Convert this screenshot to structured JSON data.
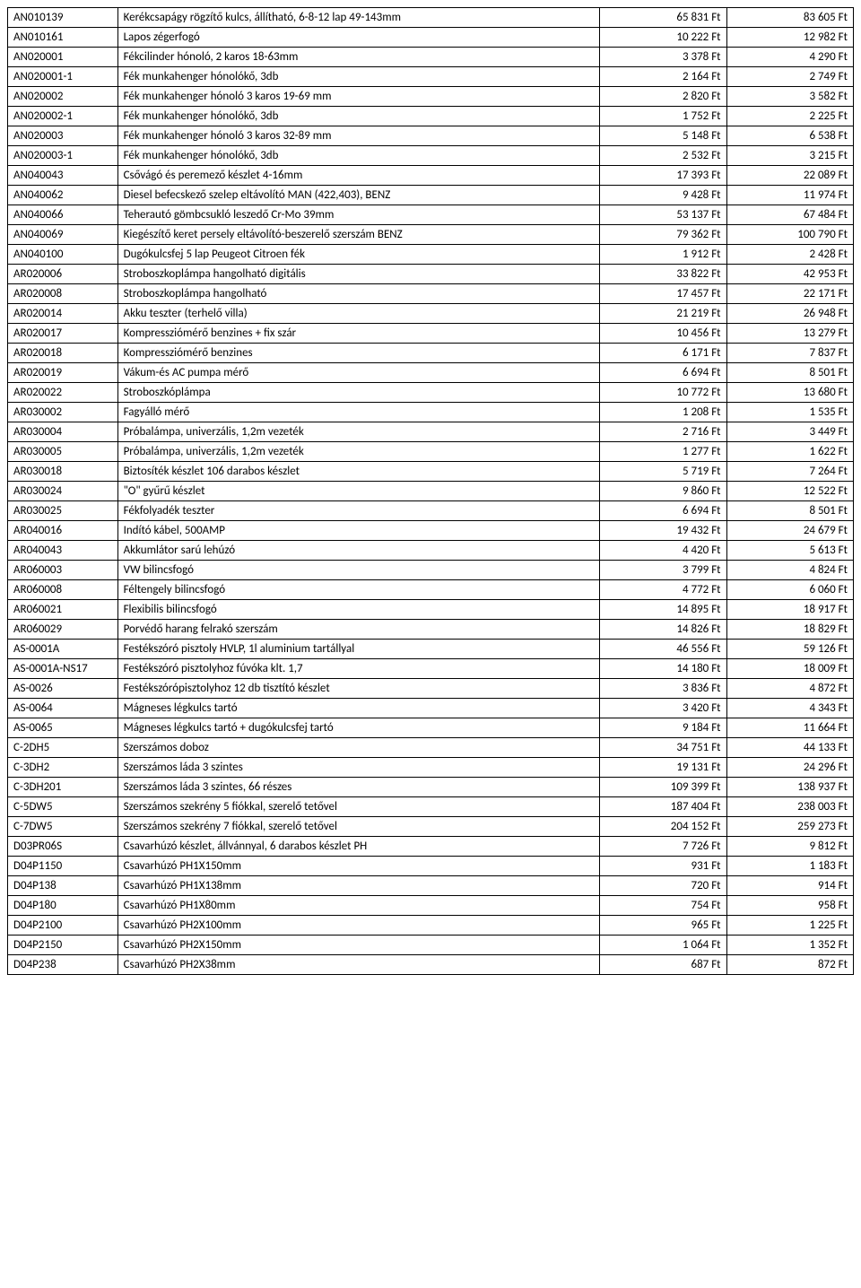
{
  "columns": [
    "code",
    "desc",
    "price1",
    "price2"
  ],
  "rows": [
    [
      "AN010139",
      "Kerékcsapágy rögzítő kulcs, állítható, 6-8-12 lap 49-143mm",
      "65 831 Ft",
      "83 605 Ft"
    ],
    [
      "AN010161",
      "Lapos zégerfogó",
      "10 222 Ft",
      "12 982 Ft"
    ],
    [
      "AN020001",
      "Fékcilinder hónoló, 2 karos 18-63mm",
      "3 378 Ft",
      "4 290 Ft"
    ],
    [
      "AN020001-1",
      "Fék munkahenger hónolókő, 3db",
      "2 164 Ft",
      "2 749 Ft"
    ],
    [
      "AN020002",
      "Fék munkahenger hónoló 3 karos 19-69 mm",
      "2 820 Ft",
      "3 582 Ft"
    ],
    [
      "AN020002-1",
      "Fék munkahenger hónolókő, 3db",
      "1 752 Ft",
      "2 225 Ft"
    ],
    [
      "AN020003",
      "Fék munkahenger hónoló 3 karos 32-89 mm",
      "5 148 Ft",
      "6 538 Ft"
    ],
    [
      "AN020003-1",
      "Fék munkahenger hónolókő, 3db",
      "2 532 Ft",
      "3 215 Ft"
    ],
    [
      "AN040043",
      "Csővágó és peremező készlet 4-16mm",
      "17 393 Ft",
      "22 089 Ft"
    ],
    [
      "AN040062",
      "Diesel befecskező szelep eltávolító MAN (422,403), BENZ",
      "9 428 Ft",
      "11 974 Ft"
    ],
    [
      "AN040066",
      "Teherautó gömbcsukló leszedő Cr-Mo 39mm",
      "53 137 Ft",
      "67 484 Ft"
    ],
    [
      "AN040069",
      "Kiegészítő keret persely eltávolító-beszerelő szerszám BENZ",
      "79 362 Ft",
      "100 790 Ft"
    ],
    [
      "AN040100",
      "Dugókulcsfej 5 lap Peugeot Citroen fék",
      "1 912 Ft",
      "2 428 Ft"
    ],
    [
      "AR020006",
      "Stroboszkoplámpa hangolható digitális",
      "33 822 Ft",
      "42 953 Ft"
    ],
    [
      "AR020008",
      "Stroboszkoplámpa hangolható",
      "17 457 Ft",
      "22 171 Ft"
    ],
    [
      "AR020014",
      "Akku teszter (terhelő villa)",
      "21 219 Ft",
      "26 948 Ft"
    ],
    [
      "AR020017",
      "Kompressziómérő  benzines + fix szár",
      "10 456 Ft",
      "13 279 Ft"
    ],
    [
      "AR020018",
      "Kompressziómérő benzines",
      "6 171 Ft",
      "7 837 Ft"
    ],
    [
      "AR020019",
      "Vákum-és AC pumpa mérő",
      "6 694 Ft",
      "8 501 Ft"
    ],
    [
      "AR020022",
      "Stroboszkóplámpa",
      "10 772 Ft",
      "13 680 Ft"
    ],
    [
      "AR030002",
      "Fagyálló mérő",
      "1 208 Ft",
      "1 535 Ft"
    ],
    [
      "AR030004",
      "Próbalámpa, univerzális, 1,2m vezeték",
      "2 716 Ft",
      "3 449 Ft"
    ],
    [
      "AR030005",
      "Próbalámpa, univerzális, 1,2m vezeték",
      "1 277 Ft",
      "1 622 Ft"
    ],
    [
      "AR030018",
      "Biztosíték készlet 106 darabos készlet",
      "5 719 Ft",
      "7 264 Ft"
    ],
    [
      "AR030024",
      "\"O\" gyűrű készlet",
      "9 860 Ft",
      "12 522 Ft"
    ],
    [
      "AR030025",
      "Fékfolyadék teszter",
      "6 694 Ft",
      "8 501 Ft"
    ],
    [
      "AR040016",
      "Indító kábel, 500AMP",
      "19 432 Ft",
      "24 679 Ft"
    ],
    [
      "AR040043",
      "Akkumlátor sarú lehúzó",
      "4 420 Ft",
      "5 613 Ft"
    ],
    [
      "AR060003",
      "VW bilincsfogó",
      "3 799 Ft",
      "4 824 Ft"
    ],
    [
      "AR060008",
      "Féltengely bilincsfogó",
      "4 772 Ft",
      "6 060 Ft"
    ],
    [
      "AR060021",
      "Flexibilis  bilincsfogó",
      "14 895 Ft",
      "18 917 Ft"
    ],
    [
      "AR060029",
      "Porvédő harang felrakó szerszám",
      "14 826 Ft",
      "18 829 Ft"
    ],
    [
      "AS-0001A",
      "Festékszóró pisztoly HVLP, 1l aluminium tartállyal",
      "46 556 Ft",
      "59 126 Ft"
    ],
    [
      "AS-0001A-NS17",
      "Festékszóró pisztolyhoz fúvóka klt. 1,7",
      "14 180 Ft",
      "18 009 Ft"
    ],
    [
      "AS-0026",
      "Festékszórópisztolyhoz 12 db tisztító készlet",
      "3 836 Ft",
      "4 872 Ft"
    ],
    [
      "AS-0064",
      "Mágneses légkulcs tartó",
      "3 420 Ft",
      "4 343 Ft"
    ],
    [
      "AS-0065",
      "Mágneses légkulcs tartó + dugókulcsfej tartó",
      "9 184 Ft",
      "11 664 Ft"
    ],
    [
      "C-2DH5",
      "Szerszámos doboz",
      "34 751 Ft",
      "44 133 Ft"
    ],
    [
      "C-3DH2",
      "Szerszámos láda 3 szintes",
      "19 131 Ft",
      "24 296 Ft"
    ],
    [
      "C-3DH201",
      "Szerszámos láda 3 szintes, 66 részes",
      "109 399 Ft",
      "138 937 Ft"
    ],
    [
      "C-5DW5",
      "Szerszámos szekrény 5 fiókkal, szerelő tetővel",
      "187 404 Ft",
      "238 003 Ft"
    ],
    [
      "C-7DW5",
      "Szerszámos szekrény 7 fiókkal, szerelő tetővel",
      "204 152 Ft",
      "259 273 Ft"
    ],
    [
      "D03PR06S",
      "Csavarhúzó készlet, állvánnyal, 6 darabos készlet PH",
      "7 726 Ft",
      "9 812 Ft"
    ],
    [
      "D04P1150",
      "Csavarhúzó PH1X150mm",
      "931 Ft",
      "1 183 Ft"
    ],
    [
      "D04P138",
      "Csavarhúzó PH1X138mm",
      "720 Ft",
      "914 Ft"
    ],
    [
      "D04P180",
      "Csavarhúzó PH1X80mm",
      "754 Ft",
      "958 Ft"
    ],
    [
      "D04P2100",
      "Csavarhúzó PH2X100mm",
      "965 Ft",
      "1 225 Ft"
    ],
    [
      "D04P2150",
      "Csavarhúzó PH2X150mm",
      "1 064 Ft",
      "1 352 Ft"
    ],
    [
      "D04P238",
      "Csavarhúzó PH2X38mm",
      "687 Ft",
      "872 Ft"
    ]
  ]
}
